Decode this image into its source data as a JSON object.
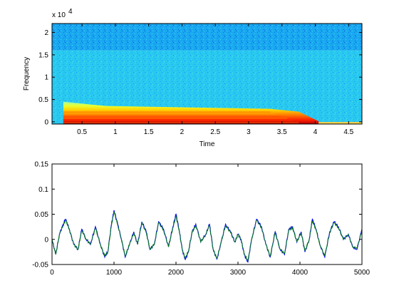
{
  "chart_data": [
    {
      "type": "heatmap",
      "xlabel": "Time",
      "ylabel": "Frequency",
      "y_exponent_label": "x 10",
      "y_exponent_power": "4",
      "xlim": [
        0.05,
        4.7
      ],
      "ylim": [
        -0.05,
        2.2
      ],
      "xticks": [
        0.5,
        1,
        1.5,
        2,
        2.5,
        3,
        3.5,
        4,
        4.5
      ],
      "xtick_labels": [
        "0.5",
        "1",
        "1.5",
        "2",
        "2.5",
        "3",
        "3.5",
        "4",
        "4.5"
      ],
      "yticks": [
        0,
        0.5,
        1,
        1.5,
        2
      ],
      "ytick_labels": [
        "0",
        "0.5",
        "1",
        "1.5",
        "2"
      ],
      "colormap": "jet",
      "grid": false,
      "features": {
        "signal_onset_time": 0.22,
        "signal_end_time": 3.75,
        "fade_end_time": 4.05,
        "energy_band_top_scaled": 0.45,
        "high_band_start_scaled": 1.6
      }
    },
    {
      "type": "line",
      "xlabel": "",
      "ylabel": "",
      "xlim": [
        0,
        5000
      ],
      "ylim": [
        -0.05,
        0.15
      ],
      "xticks": [
        0,
        1000,
        2000,
        3000,
        4000,
        5000
      ],
      "xtick_labels": [
        "0",
        "1000",
        "2000",
        "3000",
        "4000",
        "5000"
      ],
      "yticks": [
        -0.05,
        0,
        0.05,
        0.1,
        0.15
      ],
      "ytick_labels": [
        "-0.05",
        "0",
        "0.05",
        "0.1",
        "0.15"
      ],
      "grid": false,
      "series": [
        {
          "color": "#0000ff",
          "x": [
            0,
            60,
            120,
            180,
            220,
            280,
            350,
            420,
            480,
            550,
            620,
            700,
            780,
            850,
            900,
            960,
            1000,
            1060,
            1120,
            1180,
            1250,
            1320,
            1380,
            1450,
            1520,
            1580,
            1650,
            1720,
            1800,
            1880,
            1950,
            2000,
            2050,
            2100,
            2150,
            2200,
            2260,
            2320,
            2400,
            2480,
            2540,
            2600,
            2660,
            2720,
            2800,
            2880,
            2950,
            3000,
            3050,
            3100,
            3160,
            3220,
            3300,
            3380,
            3450,
            3520,
            3600,
            3680,
            3750,
            3820,
            3880,
            3950,
            4020,
            4080,
            4150,
            4200,
            4260,
            4320,
            4400,
            4480,
            4550,
            4620,
            4700,
            4780,
            4850,
            4920,
            5000
          ],
          "y": [
            0.0,
            -0.03,
            0.01,
            0.03,
            0.04,
            0.02,
            -0.01,
            -0.02,
            0.02,
            0.0,
            -0.01,
            0.025,
            -0.01,
            -0.035,
            -0.025,
            0.03,
            0.058,
            0.03,
            0.0,
            -0.035,
            -0.01,
            0.015,
            -0.01,
            0.035,
            0.015,
            -0.02,
            -0.01,
            0.035,
            0.02,
            -0.015,
            0.025,
            0.05,
            0.02,
            -0.02,
            -0.04,
            -0.025,
            0.015,
            0.03,
            -0.005,
            0.01,
            0.03,
            -0.02,
            -0.04,
            -0.01,
            0.03,
            0.015,
            -0.005,
            0.01,
            0.0,
            -0.03,
            -0.045,
            0.0,
            0.04,
            0.025,
            -0.01,
            -0.035,
            0.015,
            -0.02,
            -0.03,
            0.02,
            0.025,
            -0.005,
            0.015,
            -0.025,
            0.0,
            0.04,
            0.02,
            -0.01,
            -0.035,
            0.015,
            0.035,
            0.025,
            0.0,
            0.01,
            -0.015,
            -0.02,
            0.02
          ]
        },
        {
          "color": "#008000",
          "x": [
            0,
            60,
            120,
            180,
            220,
            280,
            350,
            420,
            480,
            550,
            620,
            700,
            780,
            850,
            900,
            960,
            1000,
            1060,
            1120,
            1180,
            1250,
            1320,
            1380,
            1450,
            1520,
            1580,
            1650,
            1720,
            1800,
            1880,
            1950,
            2000,
            2050,
            2100,
            2150,
            2200,
            2260,
            2320,
            2400,
            2480,
            2540,
            2600,
            2660,
            2720,
            2800,
            2880,
            2950,
            3000,
            3050,
            3100,
            3160,
            3220,
            3300,
            3380,
            3450,
            3520,
            3600,
            3680,
            3750,
            3820,
            3880,
            3950,
            4020,
            4080,
            4150,
            4200,
            4260,
            4320,
            4400,
            4480,
            4550,
            4620,
            4700,
            4780,
            4850,
            4920,
            5000
          ],
          "y": [
            0.0,
            -0.03,
            0.01,
            0.028,
            0.038,
            0.02,
            -0.01,
            -0.02,
            0.018,
            0.0,
            -0.01,
            0.022,
            -0.01,
            -0.033,
            -0.025,
            0.028,
            0.055,
            0.028,
            0.0,
            -0.033,
            -0.01,
            0.013,
            -0.01,
            0.033,
            0.013,
            -0.02,
            -0.01,
            0.033,
            0.018,
            -0.015,
            0.023,
            0.046,
            0.018,
            -0.02,
            -0.038,
            -0.023,
            0.013,
            0.028,
            -0.005,
            0.01,
            0.028,
            -0.02,
            -0.038,
            -0.01,
            0.028,
            0.013,
            -0.005,
            0.01,
            0.0,
            -0.028,
            -0.043,
            0.0,
            0.038,
            0.023,
            -0.01,
            -0.033,
            0.013,
            -0.02,
            -0.028,
            0.018,
            0.023,
            -0.005,
            0.013,
            -0.023,
            0.0,
            0.037,
            0.018,
            -0.01,
            -0.033,
            0.013,
            0.033,
            0.023,
            0.0,
            0.01,
            -0.015,
            -0.018,
            0.018
          ]
        }
      ]
    }
  ]
}
